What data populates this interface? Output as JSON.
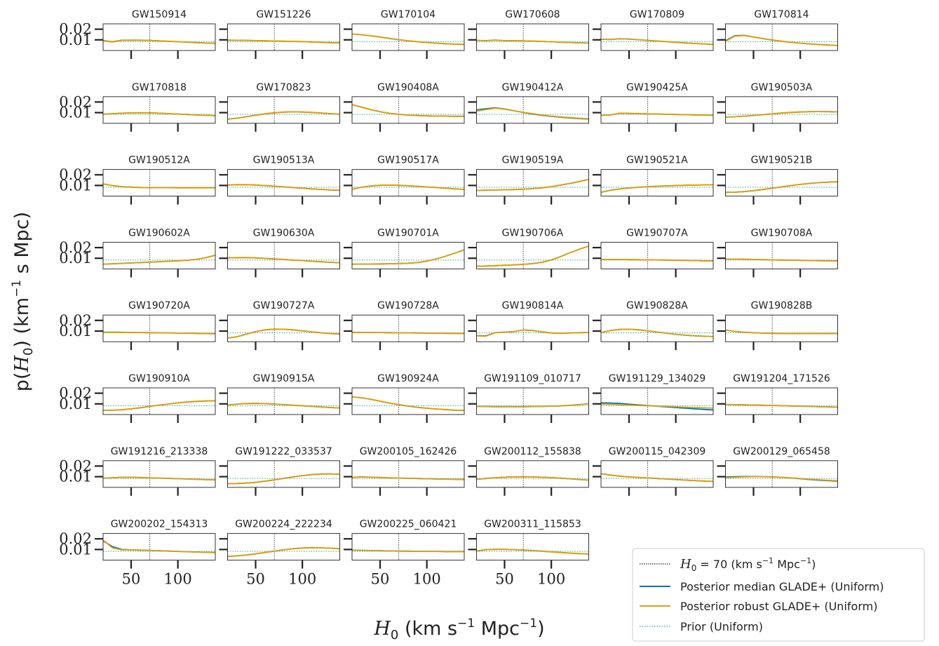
{
  "chart_data": {
    "type": "line",
    "xlabel": "H0 (km s^-1 Mpc^-1)",
    "ylabel": "p(H0) (km^-1 s Mpc)",
    "x_range": [
      20,
      140
    ],
    "y_range": [
      0,
      0.025
    ],
    "x_ticks": [
      50,
      100
    ],
    "x_tick_labels": [
      "50",
      "100"
    ],
    "y_ticks": [
      0.01,
      0.02
    ],
    "y_tick_labels": [
      "0.01",
      "0.02"
    ],
    "reference_line_H0": 70,
    "prior_value": 0.00833,
    "legend_position": "lower-right",
    "legend": [
      {
        "key": "h0",
        "label": "H0 = 70 (km s^-1 Mpc^-1)",
        "color": "#222222",
        "style": "dotted"
      },
      {
        "key": "median",
        "label": "Posterior median GLADE+ (Uniform)",
        "color": "#0072b2",
        "style": "solid"
      },
      {
        "key": "robust",
        "label": "Posterior robust GLADE+ (Uniform)",
        "color": "#e69f00",
        "style": "solid"
      },
      {
        "key": "prior",
        "label": "Prior (Uniform)",
        "color": "#2ca89a",
        "style": "dotted"
      }
    ],
    "x": [
      20,
      30,
      40,
      50,
      60,
      70,
      80,
      90,
      100,
      110,
      120,
      130,
      140
    ],
    "events": [
      {
        "name": "GW150914",
        "values": [
          0.009,
          0.008,
          0.0095,
          0.0097,
          0.0097,
          0.0095,
          0.009,
          0.0086,
          0.0082,
          0.0078,
          0.0074,
          0.007,
          0.0067
        ]
      },
      {
        "name": "GW151226",
        "values": [
          0.0097,
          0.0096,
          0.0095,
          0.0093,
          0.0091,
          0.0089,
          0.0087,
          0.0085,
          0.0083,
          0.008,
          0.0077,
          0.0074,
          0.0072
        ]
      },
      {
        "name": "GW170104",
        "values": [
          0.0155,
          0.0148,
          0.0138,
          0.0126,
          0.0113,
          0.0101,
          0.0091,
          0.0082,
          0.0075,
          0.0069,
          0.0064,
          0.006,
          0.0057
        ]
      },
      {
        "name": "GW170608",
        "values": [
          0.0095,
          0.0092,
          0.0098,
          0.0092,
          0.0092,
          0.009,
          0.0088,
          0.0085,
          0.0082,
          0.0078,
          0.0075,
          0.0072,
          0.007
        ]
      },
      {
        "name": "GW170809",
        "values": [
          0.0105,
          0.0103,
          0.011,
          0.0107,
          0.0101,
          0.0095,
          0.0089,
          0.0083,
          0.0077,
          0.0071,
          0.0066,
          0.0062,
          0.0058
        ]
      },
      {
        "name": "GW170814",
        "values": [
          0.0085,
          0.0135,
          0.014,
          0.0127,
          0.0112,
          0.0098,
          0.0087,
          0.0077,
          0.0069,
          0.0062,
          0.0056,
          0.0051,
          0.0047
        ]
      },
      {
        "name": "GW170818",
        "values": [
          0.0085,
          0.009,
          0.0095,
          0.0098,
          0.0099,
          0.0098,
          0.0095,
          0.0091,
          0.0087,
          0.0083,
          0.0079,
          0.0075,
          0.0071
        ]
      },
      {
        "name": "GW170823",
        "values": [
          0.0038,
          0.0048,
          0.0061,
          0.0076,
          0.0089,
          0.0099,
          0.0105,
          0.0107,
          0.0106,
          0.0102,
          0.0097,
          0.0091,
          0.0085
        ]
      },
      {
        "name": "GW190408A",
        "values": [
          0.0175,
          0.0152,
          0.0128,
          0.0109,
          0.0094,
          0.0084,
          0.0077,
          0.0073,
          0.007,
          0.0068,
          0.0067,
          0.0066,
          0.0066
        ]
      },
      {
        "name": "GW190412A",
        "values": [
          0.0115,
          0.0128,
          0.0142,
          0.0132,
          0.0118,
          0.0103,
          0.009,
          0.0078,
          0.0068,
          0.006,
          0.0053,
          0.0047,
          0.0043
        ]
      },
      {
        "name": "GW190425A",
        "values": [
          0.0075,
          0.0078,
          0.0095,
          0.0093,
          0.0091,
          0.0089,
          0.0087,
          0.0085,
          0.0083,
          0.0081,
          0.0079,
          0.0077,
          0.0075
        ]
      },
      {
        "name": "GW190503A",
        "values": [
          0.0058,
          0.0062,
          0.0067,
          0.0074,
          0.0081,
          0.0089,
          0.0096,
          0.0102,
          0.0106,
          0.0109,
          0.011,
          0.0109,
          0.0107
        ]
      },
      {
        "name": "GW190512A",
        "values": [
          0.0115,
          0.0099,
          0.0089,
          0.0084,
          0.0081,
          0.008,
          0.0079,
          0.0079,
          0.0078,
          0.0078,
          0.0078,
          0.0078,
          0.0078
        ]
      },
      {
        "name": "GW190513A",
        "values": [
          0.0103,
          0.0107,
          0.0107,
          0.0104,
          0.0099,
          0.0093,
          0.0087,
          0.008,
          0.0074,
          0.0068,
          0.0063,
          0.0058,
          0.0055
        ]
      },
      {
        "name": "GW190517A",
        "values": [
          0.0065,
          0.0083,
          0.0095,
          0.0101,
          0.0103,
          0.0101,
          0.0097,
          0.0092,
          0.0086,
          0.008,
          0.0074,
          0.0068,
          0.0063
        ]
      },
      {
        "name": "GW190519A",
        "values": [
          0.0053,
          0.0055,
          0.0057,
          0.0059,
          0.0062,
          0.0065,
          0.007,
          0.0078,
          0.0089,
          0.0103,
          0.0119,
          0.0137,
          0.0157
        ]
      },
      {
        "name": "GW190521A",
        "values": [
          0.0035,
          0.0055,
          0.0067,
          0.0076,
          0.0083,
          0.0088,
          0.0093,
          0.0096,
          0.0099,
          0.0101,
          0.0103,
          0.0105,
          0.0107
        ]
      },
      {
        "name": "GW190521B",
        "values": [
          0.0035,
          0.0037,
          0.0042,
          0.0051,
          0.0062,
          0.0074,
          0.0087,
          0.0099,
          0.011,
          0.0119,
          0.0126,
          0.0131,
          0.0134
        ]
      },
      {
        "name": "GW190602A",
        "values": [
          0.0045,
          0.0048,
          0.0052,
          0.0056,
          0.006,
          0.0064,
          0.0068,
          0.0072,
          0.0076,
          0.0081,
          0.009,
          0.0105,
          0.0128
        ]
      },
      {
        "name": "GW190630A",
        "values": [
          0.0103,
          0.0106,
          0.0106,
          0.0103,
          0.0099,
          0.0094,
          0.0089,
          0.0083,
          0.0078,
          0.0072,
          0.0067,
          0.0062,
          0.0058
        ]
      },
      {
        "name": "GW190701A",
        "values": [
          0.0044,
          0.0045,
          0.0046,
          0.0047,
          0.0048,
          0.005,
          0.0053,
          0.006,
          0.0073,
          0.0093,
          0.0119,
          0.0149,
          0.0178
        ]
      },
      {
        "name": "GW190706A",
        "values": [
          0.0025,
          0.0027,
          0.003,
          0.0034,
          0.0038,
          0.0043,
          0.005,
          0.0062,
          0.0084,
          0.0116,
          0.0152,
          0.0185,
          0.0214
        ]
      },
      {
        "name": "GW190707A",
        "values": [
          0.0089,
          0.0089,
          0.0088,
          0.0087,
          0.0086,
          0.0085,
          0.0084,
          0.0083,
          0.0081,
          0.008,
          0.0078,
          0.0076,
          0.0075
        ]
      },
      {
        "name": "GW190708A",
        "values": [
          0.0092,
          0.0091,
          0.009,
          0.0089,
          0.0087,
          0.0085,
          0.0083,
          0.0082,
          0.008,
          0.0079,
          0.0077,
          0.0076,
          0.0075
        ]
      },
      {
        "name": "GW190720A",
        "values": [
          0.0089,
          0.0089,
          0.0088,
          0.0087,
          0.0086,
          0.0085,
          0.0084,
          0.0083,
          0.0081,
          0.008,
          0.0078,
          0.0076,
          0.0075
        ]
      },
      {
        "name": "GW190727A",
        "values": [
          0.0035,
          0.0047,
          0.0071,
          0.0094,
          0.0111,
          0.0118,
          0.0117,
          0.0111,
          0.0102,
          0.0093,
          0.0084,
          0.0077,
          0.0072
        ]
      },
      {
        "name": "GW190728A",
        "values": [
          0.0088,
          0.0087,
          0.0087,
          0.0086,
          0.0085,
          0.0084,
          0.0083,
          0.0082,
          0.0081,
          0.008,
          0.0079,
          0.0078,
          0.0078
        ]
      },
      {
        "name": "GW190814A",
        "values": [
          0.0055,
          0.0052,
          0.0085,
          0.009,
          0.0095,
          0.011,
          0.0105,
          0.0092,
          0.0082,
          0.0079,
          0.0082,
          0.0085,
          0.0087
        ]
      },
      {
        "name": "GW190828A",
        "values": [
          0.0085,
          0.0105,
          0.0115,
          0.0117,
          0.0112,
          0.0102,
          0.0091,
          0.008,
          0.007,
          0.0062,
          0.0056,
          0.0051,
          0.0048
        ]
      },
      {
        "name": "GW190828B",
        "values": [
          0.011,
          0.0097,
          0.0089,
          0.0084,
          0.0081,
          0.0079,
          0.0078,
          0.0077,
          0.0077,
          0.0077,
          0.0077,
          0.0077,
          0.0077
        ]
      },
      {
        "name": "GW190910A",
        "values": [
          0.0038,
          0.004,
          0.0045,
          0.0053,
          0.0064,
          0.0076,
          0.0088,
          0.0099,
          0.0109,
          0.0117,
          0.0123,
          0.0127,
          0.0129
        ]
      },
      {
        "name": "GW190915A",
        "values": [
          0.0088,
          0.0098,
          0.0103,
          0.0104,
          0.0102,
          0.0098,
          0.0093,
          0.0088,
          0.0082,
          0.0077,
          0.0071,
          0.0066,
          0.0061
        ]
      },
      {
        "name": "GW190924A",
        "values": [
          0.0165,
          0.0158,
          0.0143,
          0.0125,
          0.0108,
          0.0092,
          0.0079,
          0.0068,
          0.0059,
          0.0052,
          0.0046,
          0.0041,
          0.0038
        ]
      },
      {
        "name": "GW191109_010717",
        "values": [
          0.0075,
          0.0075,
          0.0074,
          0.0074,
          0.0074,
          0.0074,
          0.0075,
          0.0076,
          0.0078,
          0.0081,
          0.0086,
          0.0093,
          0.0102
        ]
      },
      {
        "name": "GW191129_134029",
        "values": [
          0.0098,
          0.0095,
          0.0092,
          0.0089,
          0.0085,
          0.0082,
          0.0079,
          0.0076,
          0.0073,
          0.0069,
          0.0066,
          0.0063,
          0.006
        ]
      },
      {
        "name": "GW191204_171526",
        "values": [
          0.0095,
          0.0093,
          0.0091,
          0.0089,
          0.0087,
          0.0085,
          0.0083,
          0.008,
          0.0078,
          0.0076,
          0.0073,
          0.0071,
          0.0069
        ]
      },
      {
        "name": "GW191216_213338",
        "values": [
          0.0085,
          0.009,
          0.0094,
          0.0094,
          0.0092,
          0.0089,
          0.0087,
          0.0084,
          0.0081,
          0.0078,
          0.0075,
          0.0072,
          0.007
        ]
      },
      {
        "name": "GW191222_033537",
        "values": [
          0.0035,
          0.0036,
          0.004,
          0.0047,
          0.0058,
          0.007,
          0.0084,
          0.0098,
          0.011,
          0.0119,
          0.0125,
          0.0126,
          0.0123
        ]
      },
      {
        "name": "GW200105_162426",
        "values": [
          0.0092,
          0.0098,
          0.0095,
          0.0092,
          0.0089,
          0.0087,
          0.0085,
          0.0083,
          0.0081,
          0.0079,
          0.0077,
          0.0075,
          0.0073
        ]
      },
      {
        "name": "GW200112_155838",
        "values": [
          0.0075,
          0.0083,
          0.009,
          0.0095,
          0.0098,
          0.0099,
          0.0098,
          0.0095,
          0.0091,
          0.0086,
          0.008,
          0.0074,
          0.0068
        ]
      },
      {
        "name": "GW200115_042309",
        "values": [
          0.0128,
          0.0115,
          0.0105,
          0.0098,
          0.0093,
          0.0088,
          0.0083,
          0.0078,
          0.0073,
          0.0068,
          0.0063,
          0.0059,
          0.0055
        ]
      },
      {
        "name": "GW200129_065458",
        "values": [
          0.009,
          0.0094,
          0.0098,
          0.01,
          0.01,
          0.0098,
          0.0094,
          0.0089,
          0.0083,
          0.0077,
          0.0071,
          0.0066,
          0.0062
        ]
      },
      {
        "name": "GW200202_154313",
        "values": [
          0.0188,
          0.0115,
          0.0096,
          0.0097,
          0.0094,
          0.0091,
          0.0088,
          0.0085,
          0.0082,
          0.0079,
          0.0076,
          0.0073,
          0.0071
        ]
      },
      {
        "name": "GW200224_222234",
        "values": [
          0.0035,
          0.004,
          0.0048,
          0.0059,
          0.0072,
          0.0085,
          0.0097,
          0.0107,
          0.0114,
          0.0117,
          0.0116,
          0.0112,
          0.0107
        ]
      },
      {
        "name": "GW200225_060421",
        "values": [
          0.0095,
          0.0092,
          0.009,
          0.0088,
          0.0086,
          0.0085,
          0.0084,
          0.0083,
          0.0082,
          0.0082,
          0.0081,
          0.0081,
          0.0081
        ]
      },
      {
        "name": "GW200311_115853",
        "values": [
          0.0085,
          0.0098,
          0.0101,
          0.0101,
          0.0099,
          0.0095,
          0.009,
          0.0084,
          0.0078,
          0.0072,
          0.0066,
          0.0061,
          0.0057
        ]
      }
    ],
    "median_offsets": {
      "GW150914": [
        0.0003,
        0.0002,
        0.0001,
        0,
        0,
        0,
        0,
        0,
        0,
        0,
        0,
        0,
        0
      ],
      "GW170814": [
        0.0005,
        0.0004,
        0.0002,
        0,
        0,
        0,
        0,
        0,
        0,
        0,
        0,
        0,
        0
      ],
      "GW190412A": [
        0.001,
        0.0009,
        0.0004,
        0.0002,
        0,
        -0.0002,
        -0.0003,
        -0.0003,
        -0.0003,
        -0.0003,
        -0.0003,
        -0.0003,
        -0.0003
      ],
      "GW190814A": [
        0.0002,
        0.0003,
        0,
        0,
        0,
        0,
        0,
        0,
        0,
        0,
        0,
        0,
        0
      ],
      "GW191129_134029": [
        0.0012,
        0.0013,
        0.0012,
        0.0008,
        0.0005,
        0.0002,
        -0.0001,
        -0.0004,
        -0.0007,
        -0.001,
        -0.0013,
        -0.0015,
        -0.0017
      ],
      "GW200129_065458": [
        0.0006,
        0.0006,
        0.0003,
        0.0001,
        0,
        0,
        0,
        -0.0001,
        -0.0002,
        -0.0003,
        -0.0004,
        -0.0004,
        -0.0004
      ],
      "GW200202_154313": [
        -0.0008,
        0.0012,
        0.0004,
        0,
        0,
        0,
        0,
        0,
        0,
        0,
        0,
        0,
        0
      ]
    }
  }
}
